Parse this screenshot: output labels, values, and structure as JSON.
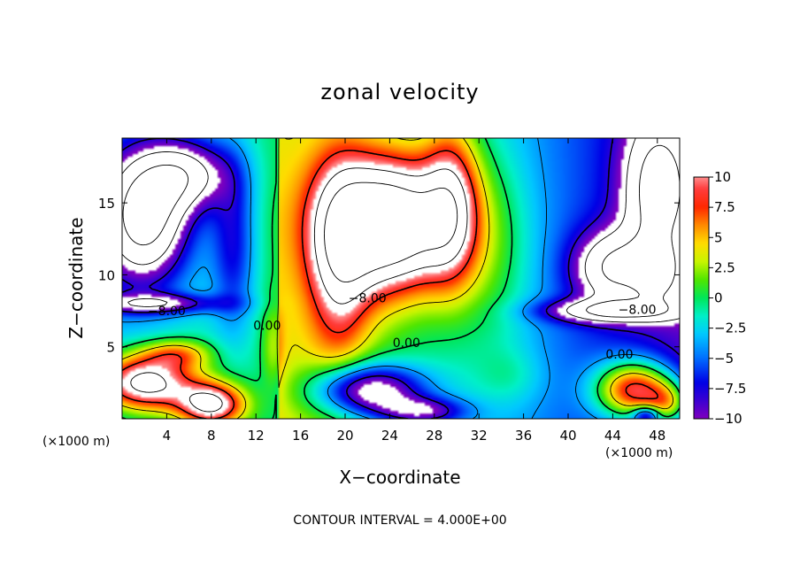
{
  "chart_data": {
    "type": "heatmap",
    "title": "zonal velocity",
    "xlabel": "X−coordinate",
    "ylabel": "Z−coordinate",
    "x_unit": "(×1000 m)",
    "x_unit_right": "(×1000 m)",
    "xlim": [
      0,
      50
    ],
    "ylim": [
      0,
      19.5
    ],
    "xticks": [
      4,
      8,
      12,
      16,
      20,
      24,
      28,
      32,
      36,
      40,
      44,
      48
    ],
    "yticks": [
      5,
      10,
      15
    ],
    "colorbar": {
      "range": [
        -10,
        10
      ],
      "ticks": [
        10,
        7.5,
        5,
        2.5,
        0,
        -2.5,
        -5,
        -7.5,
        -10
      ],
      "tick_labels": [
        "10",
        "7.5",
        "5",
        "2.5",
        "0",
        "−2.5",
        "−5",
        "−7.5",
        "−10"
      ]
    },
    "contour_interval_text": "CONTOUR INTERVAL = 4.000E+00",
    "contour_labels": [
      {
        "text": "−8.00",
        "x": 4,
        "z": 7.5
      },
      {
        "text": "0.00",
        "x": 13,
        "z": 6.5
      },
      {
        "text": "−8.00",
        "x": 22,
        "z": 8.4
      },
      {
        "text": "0.00",
        "x": 25.5,
        "z": 5.3
      },
      {
        "text": "−8.00",
        "x": 46.2,
        "z": 7.6
      },
      {
        "text": "0.00",
        "x": 44.6,
        "z": 4.5
      }
    ],
    "field_features": [
      {
        "x": 2,
        "z": 14,
        "amp": -16,
        "sx": 4,
        "sz": 4.5
      },
      {
        "x": 6,
        "z": 17,
        "amp": -10,
        "sx": 4,
        "sz": 2.5
      },
      {
        "x": 10,
        "z": 12,
        "amp": -6,
        "sx": 2,
        "sz": 6
      },
      {
        "x": 3,
        "z": 8,
        "amp": -8,
        "sx": 6,
        "sz": 0.7
      },
      {
        "x": 24,
        "z": 13.5,
        "amp": 22,
        "sx": 5.5,
        "sz": 4.5
      },
      {
        "x": 19.5,
        "z": 11,
        "amp": 9,
        "sx": 2.8,
        "sz": 7
      },
      {
        "x": 29.5,
        "z": 15,
        "amp": 10,
        "sx": 2.5,
        "sz": 5.5
      },
      {
        "x": 33,
        "z": 12,
        "amp": 4,
        "sx": 4,
        "sz": 7
      },
      {
        "x": 48,
        "z": 16,
        "amp": -11,
        "sx": 3,
        "sz": 5
      },
      {
        "x": 44,
        "z": 10.5,
        "amp": -10,
        "sx": 3.5,
        "sz": 2.5
      },
      {
        "x": 48,
        "z": 10,
        "amp": -8,
        "sx": 2,
        "sz": 2
      },
      {
        "x": 44,
        "z": 7.5,
        "amp": -10,
        "sx": 6,
        "sz": 0.8
      },
      {
        "x": 2,
        "z": 2.5,
        "amp": 16,
        "sx": 4.5,
        "sz": 2
      },
      {
        "x": 8,
        "z": 1,
        "amp": 14,
        "sx": 3,
        "sz": 1.5
      },
      {
        "x": 5,
        "z": 4.5,
        "amp": 6,
        "sx": 3,
        "sz": 1
      },
      {
        "x": 22,
        "z": 2,
        "amp": -13,
        "sx": 5,
        "sz": 1.8
      },
      {
        "x": 27,
        "z": 0.5,
        "amp": -8,
        "sx": 4,
        "sz": 1
      },
      {
        "x": 46,
        "z": 2,
        "amp": 16,
        "sx": 3.5,
        "sz": 2
      },
      {
        "x": 49,
        "z": 1,
        "amp": 8,
        "sx": 2,
        "sz": 1.5
      },
      {
        "x": 47,
        "z": 0.3,
        "amp": -8,
        "sx": 1.2,
        "sz": 0.6
      },
      {
        "x": 13.5,
        "z": 5,
        "amp": 3,
        "sx": 1,
        "sz": 3
      },
      {
        "x": 35,
        "z": 3,
        "amp": 2,
        "sx": 3,
        "sz": 2
      }
    ]
  }
}
